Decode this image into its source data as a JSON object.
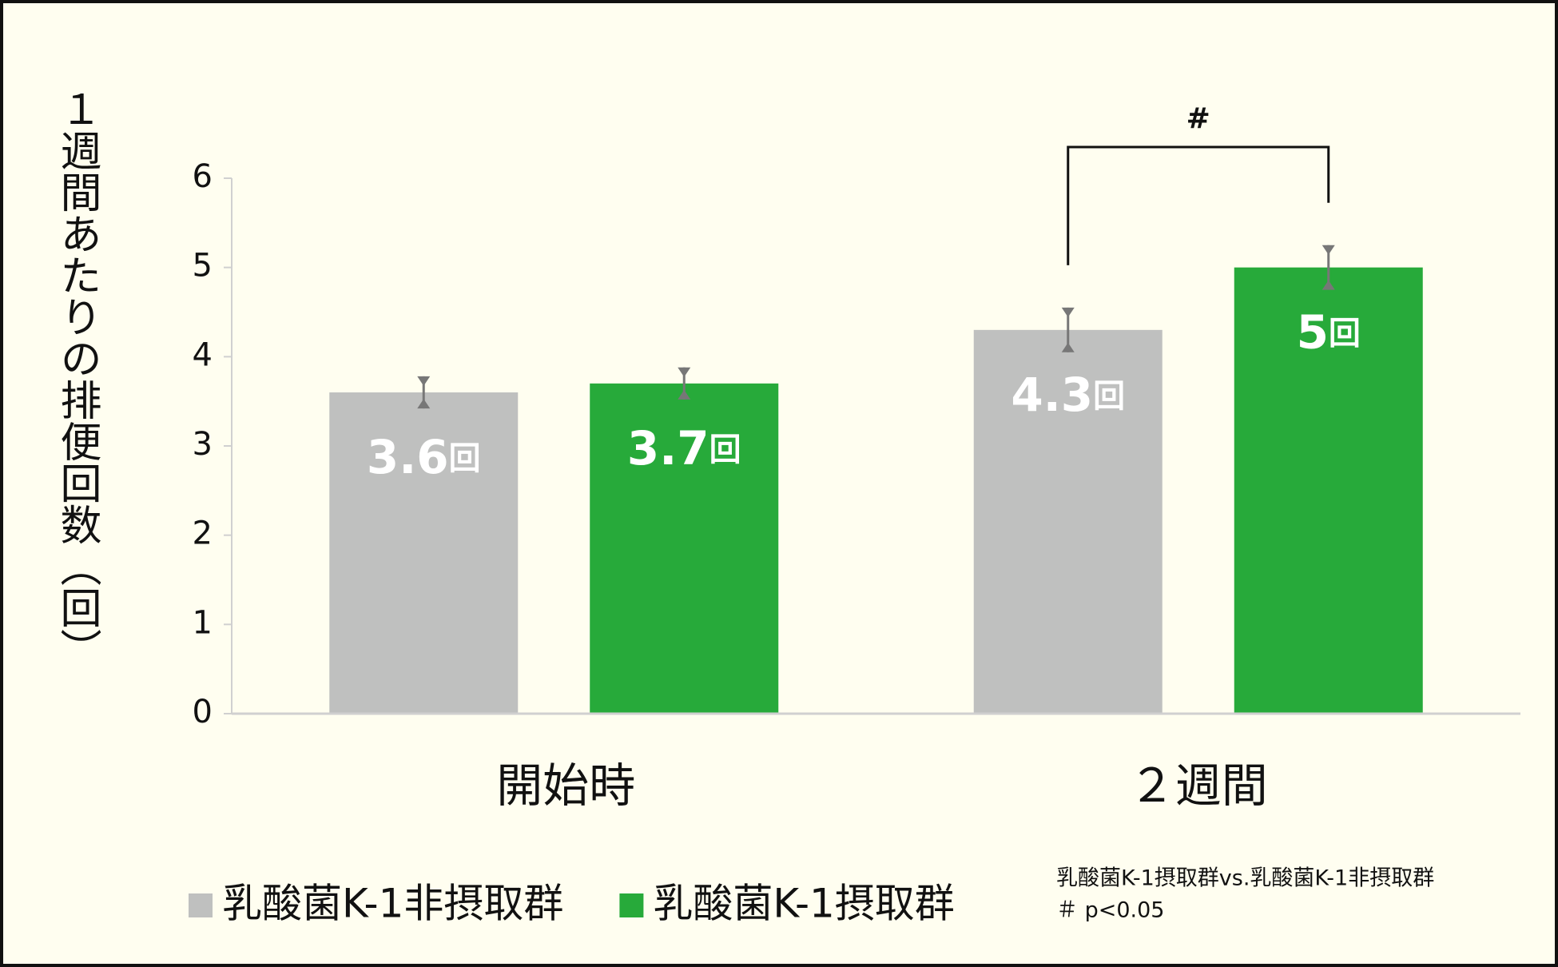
{
  "chart_data": {
    "type": "bar",
    "y_label": "１週間あたりの排便回数（回）",
    "categories": [
      "開始時",
      "２週間"
    ],
    "series": [
      {
        "name": "乳酸菌K-1非摂取群",
        "color": "#bfc0bf",
        "values": [
          3.6,
          4.3
        ],
        "errors": [
          0.18,
          0.25
        ]
      },
      {
        "name": "乳酸菌K-1摂取群",
        "color": "#27aa3a",
        "values": [
          3.7,
          5.0
        ],
        "errors": [
          0.18,
          0.25
        ]
      }
    ],
    "value_label_unit": "回",
    "ylim": [
      0,
      6
    ],
    "yticks": [
      0,
      1,
      2,
      3,
      4,
      5,
      6
    ],
    "legend": "bottom-left",
    "annotations": {
      "significance": "#",
      "footnote": [
        "乳酸菌K-1摂取群vs.乳酸菌K-1非摂取群",
        "＃ p<0.05"
      ]
    }
  }
}
